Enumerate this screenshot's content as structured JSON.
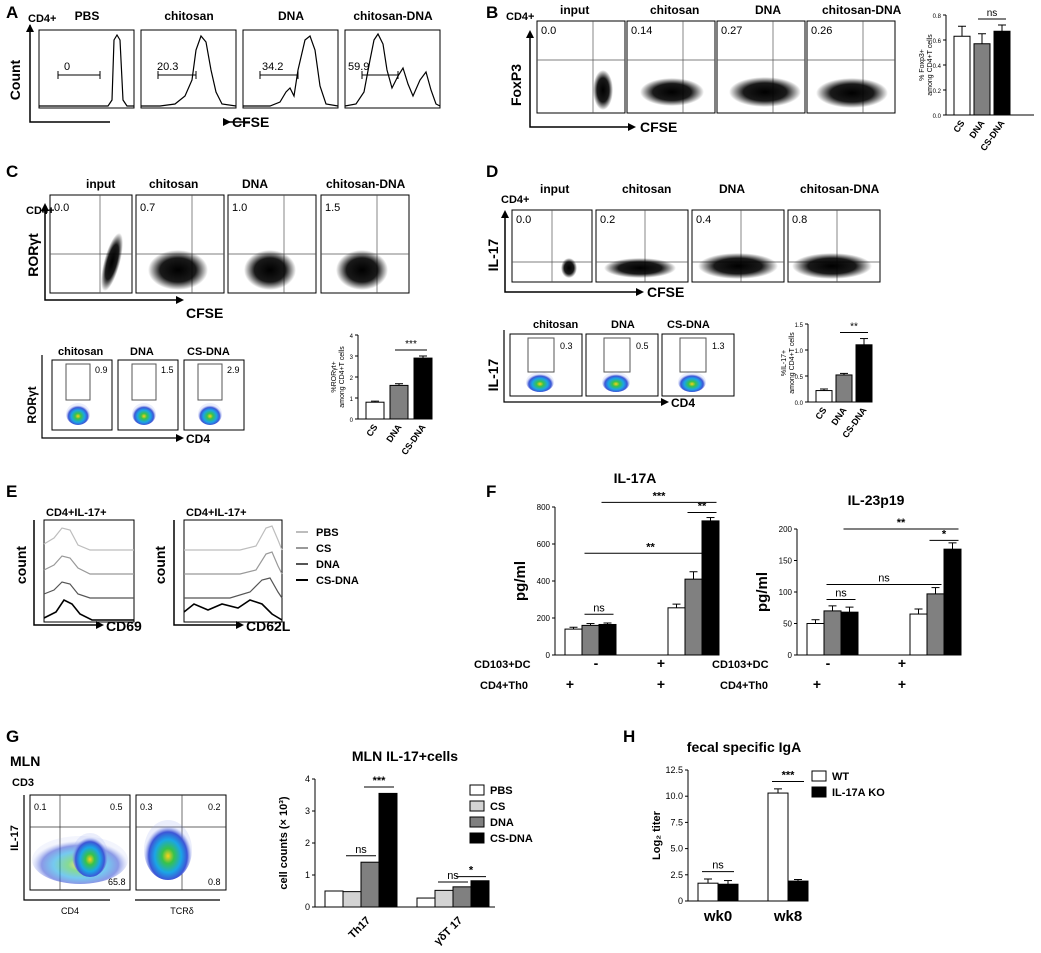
{
  "A": {
    "label": "A",
    "gate": "CD4+",
    "ylabel": "Count",
    "xlabel": "CFSE",
    "samples": [
      {
        "title": "PBS",
        "value": "0"
      },
      {
        "title": "chitosan",
        "value": "20.3"
      },
      {
        "title": "DNA",
        "value": "34.2"
      },
      {
        "title": "chitosan-DNA",
        "value": "59.9"
      }
    ]
  },
  "B": {
    "label": "B",
    "gate": "CD4+",
    "ylabel": "FoxP3",
    "xlabel": "CFSE",
    "samples": [
      {
        "title": "input",
        "value": "0.0"
      },
      {
        "title": "chitosan",
        "value": "0.14"
      },
      {
        "title": "DNA",
        "value": "0.27"
      },
      {
        "title": "chitosan-DNA",
        "value": "0.26"
      }
    ]
  },
  "C": {
    "label": "C",
    "gate": "CD4+",
    "ylabel": "RORγt",
    "xlabel": "CFSE",
    "samples": [
      {
        "title": "input",
        "value": "0.0"
      },
      {
        "title": "chitosan",
        "value": "0.7"
      },
      {
        "title": "DNA",
        "value": "1.0"
      },
      {
        "title": "chitosan-DNA",
        "value": "1.5"
      }
    ],
    "pseudo": {
      "ylabel": "RORγt",
      "xlabel": "CD4",
      "samples": [
        {
          "title": "chitosan",
          "value": "0.9"
        },
        {
          "title": "DNA",
          "value": "1.5"
        },
        {
          "title": "CS-DNA",
          "value": "2.9"
        }
      ]
    }
  },
  "D": {
    "label": "D",
    "gate": "CD4+",
    "ylabel": "IL-17",
    "xlabel": "CFSE",
    "samples": [
      {
        "title": "input",
        "value": "0.0"
      },
      {
        "title": "chitosan",
        "value": "0.2"
      },
      {
        "title": "DNA",
        "value": "0.4"
      },
      {
        "title": "chitosan-DNA",
        "value": "0.8"
      }
    ],
    "pseudo": {
      "ylabel": "IL-17",
      "xlabel": "CD4",
      "samples": [
        {
          "title": "chitosan",
          "value": "0.3"
        },
        {
          "title": "DNA",
          "value": "0.5"
        },
        {
          "title": "CS-DNA",
          "value": "1.3"
        }
      ]
    }
  },
  "E": {
    "label": "E",
    "gates": [
      "CD4+IL-17+",
      "CD4+IL-17+"
    ],
    "ylabel": "count",
    "xlabels": [
      "CD69",
      "CD62L"
    ],
    "legend": [
      "PBS",
      "CS",
      "DNA",
      "CS-DNA"
    ]
  },
  "F": {
    "label": "F",
    "row_labels": [
      "CD103+DC",
      "CD4+Th0"
    ],
    "group1_marks": [
      "-",
      "+"
    ],
    "group2_marks": [
      "+",
      "+"
    ]
  },
  "G": {
    "label": "G",
    "tissue": "MLN",
    "gate": "CD3",
    "flow": {
      "ylabel": "IL-17",
      "plot1": {
        "xlabel": "CD4",
        "q_ul": "0.1",
        "q_ur": "0.5",
        "q_lr": "65.8"
      },
      "plot2": {
        "xlabel": "TCRδ",
        "q_ul": "0.3",
        "q_ur": "0.2",
        "q_lr": "0.8"
      }
    }
  },
  "H": {
    "label": "H"
  },
  "chart_data": [
    {
      "id": "B-bar",
      "type": "bar",
      "categories": [
        "CS",
        "DNA",
        "CS-DNA"
      ],
      "values": [
        0.63,
        0.57,
        0.67
      ],
      "errors": [
        0.08,
        0.08,
        0.05
      ],
      "colors": [
        "#ffffff",
        "#808080",
        "#000000"
      ],
      "ylim": [
        0,
        0.8
      ],
      "yticks": [
        "0.0",
        "0.2",
        "0.4",
        "0.6",
        "0.8"
      ],
      "ylabel": "% Foxp3+ among CD4+T cells",
      "annotations": [
        {
          "text": "ns",
          "from": 1,
          "to": 2
        }
      ]
    },
    {
      "id": "C-bar",
      "type": "bar",
      "categories": [
        "CS",
        "DNA",
        "CS-DNA"
      ],
      "values": [
        0.8,
        1.6,
        2.9
      ],
      "errors": [
        0.05,
        0.08,
        0.1
      ],
      "colors": [
        "#ffffff",
        "#808080",
        "#000000"
      ],
      "ylim": [
        0,
        4
      ],
      "yticks": [
        "0",
        "1",
        "2",
        "3",
        "4"
      ],
      "ylabel": "%RORγt+ among CD4+T cells",
      "annotations": [
        {
          "text": "***",
          "from": 1,
          "to": 2
        }
      ]
    },
    {
      "id": "D-bar",
      "type": "bar",
      "categories": [
        "CS",
        "DNA",
        "CS-DNA"
      ],
      "values": [
        0.22,
        0.52,
        1.1
      ],
      "errors": [
        0.03,
        0.03,
        0.12
      ],
      "colors": [
        "#ffffff",
        "#808080",
        "#000000"
      ],
      "ylim": [
        0,
        1.5
      ],
      "yticks": [
        "0.0",
        "0.5",
        "1.0",
        "1.5"
      ],
      "ylabel": "%IL-17+ among CD4+T cells",
      "annotations": [
        {
          "text": "**",
          "from": 1,
          "to": 2
        }
      ]
    },
    {
      "id": "F-IL17A",
      "type": "bar",
      "title": "IL-17A",
      "groups": [
        "g1",
        "g2"
      ],
      "series": [
        {
          "name": "white",
          "color": "#ffffff",
          "values": [
            140,
            255
          ],
          "errors": [
            10,
            20
          ]
        },
        {
          "name": "gray",
          "color": "#808080",
          "values": [
            160,
            410
          ],
          "errors": [
            10,
            40
          ]
        },
        {
          "name": "black",
          "color": "#000000",
          "values": [
            165,
            725
          ],
          "errors": [
            8,
            18
          ]
        }
      ],
      "ylim": [
        0,
        800
      ],
      "yticks": [
        "0",
        "200",
        "400",
        "600",
        "800"
      ],
      "ylabel": "pg/ml",
      "annotations": [
        {
          "text": "ns",
          "g1": 0,
          "s1": 1,
          "g2": 0,
          "s2": 2,
          "y": 220
        },
        {
          "text": "**",
          "g1": 0,
          "s1": 1,
          "g2": 1,
          "s2": 2,
          "y": 550
        },
        {
          "text": "***",
          "g1": 0,
          "s1": 2,
          "g2": 1,
          "s2": 2,
          "y": 825
        },
        {
          "text": "**",
          "g1": 1,
          "s1": 1,
          "g2": 1,
          "s2": 2,
          "y": 770
        }
      ]
    },
    {
      "id": "F-IL23",
      "type": "bar",
      "title": "IL-23p19",
      "groups": [
        "g1",
        "g2"
      ],
      "series": [
        {
          "name": "white",
          "color": "#ffffff",
          "values": [
            50,
            65
          ],
          "errors": [
            6,
            8
          ]
        },
        {
          "name": "gray",
          "color": "#808080",
          "values": [
            70,
            97
          ],
          "errors": [
            8,
            10
          ]
        },
        {
          "name": "black",
          "color": "#000000",
          "values": [
            68,
            168
          ],
          "errors": [
            8,
            10
          ]
        }
      ],
      "ylim": [
        0,
        200
      ],
      "yticks": [
        "0",
        "50",
        "100",
        "150",
        "200"
      ],
      "ylabel": "pg/ml",
      "annotations": [
        {
          "text": "ns",
          "g1": 0,
          "s1": 1,
          "g2": 0,
          "s2": 2,
          "y": 88
        },
        {
          "text": "ns",
          "g1": 0,
          "s1": 1,
          "g2": 1,
          "s2": 1,
          "y": 112
        },
        {
          "text": "**",
          "g1": 0,
          "s1": 2,
          "g2": 1,
          "s2": 2,
          "y": 200
        },
        {
          "text": "*",
          "g1": 1,
          "s1": 1,
          "g2": 1,
          "s2": 2,
          "y": 182
        }
      ]
    },
    {
      "id": "G-bar",
      "type": "bar",
      "title": "MLN IL-17+cells",
      "categories": [
        "Th17",
        "γδT 17"
      ],
      "series": [
        {
          "name": "PBS",
          "color": "#ffffff",
          "values": [
            0.5,
            0.28
          ]
        },
        {
          "name": "CS",
          "color": "#d3d3d3",
          "values": [
            0.48,
            0.52
          ]
        },
        {
          "name": "DNA",
          "color": "#808080",
          "values": [
            1.4,
            0.63
          ]
        },
        {
          "name": "CS-DNA",
          "color": "#000000",
          "values": [
            3.55,
            0.82
          ]
        }
      ],
      "ylim": [
        0,
        4
      ],
      "yticks": [
        "0",
        "1",
        "2",
        "3",
        "4"
      ],
      "ylabel": "cell counts (× 10³)",
      "annotations": [
        {
          "text": "ns",
          "g1": 0,
          "s1": 1,
          "g2": 0,
          "s2": 2,
          "y": 1.6
        },
        {
          "text": "***",
          "g1": 0,
          "s1": 2,
          "g2": 0,
          "s2": 3,
          "y": 3.75
        },
        {
          "text": "ns",
          "g1": 1,
          "s1": 1,
          "g2": 1,
          "s2": 2,
          "y": 0.78
        },
        {
          "text": "*",
          "g1": 1,
          "s1": 2,
          "g2": 1,
          "s2": 3,
          "y": 0.95
        }
      ]
    },
    {
      "id": "H-bar",
      "type": "bar",
      "title": "fecal specific IgA",
      "categories": [
        "wk0",
        "wk8"
      ],
      "series": [
        {
          "name": "WT",
          "color": "#ffffff",
          "values": [
            1.7,
            10.3
          ],
          "errors": [
            0.4,
            0.4
          ]
        },
        {
          "name": "IL-17A KO",
          "color": "#000000",
          "values": [
            1.6,
            1.9
          ],
          "errors": [
            0.35,
            0.15
          ]
        }
      ],
      "ylim": [
        0,
        12.5
      ],
      "yticks": [
        "0",
        "2.5",
        "5.0",
        "7.5",
        "10.0",
        "12.5"
      ],
      "ylabel": "Log₂ titer",
      "annotations": [
        {
          "text": "ns",
          "g1": 0,
          "s1": 0,
          "g2": 0,
          "s2": 1,
          "y": 2.8
        },
        {
          "text": "***",
          "g1": 1,
          "s1": 0,
          "g2": 1,
          "s2": 1,
          "y": 11.4
        }
      ]
    }
  ]
}
